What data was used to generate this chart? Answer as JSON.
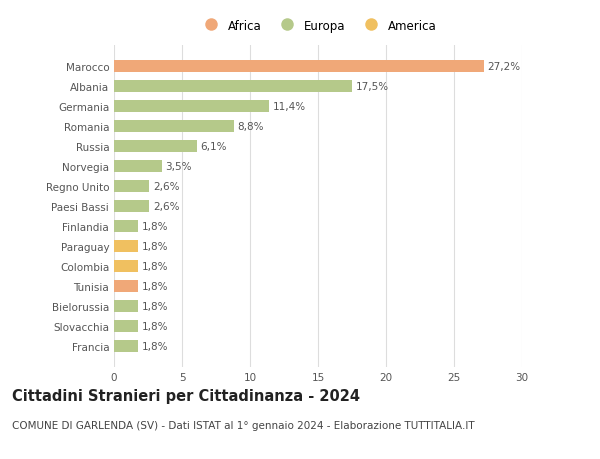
{
  "categories": [
    "Francia",
    "Slovacchia",
    "Bielorussia",
    "Tunisia",
    "Colombia",
    "Paraguay",
    "Finlandia",
    "Paesi Bassi",
    "Regno Unito",
    "Norvegia",
    "Russia",
    "Romania",
    "Germania",
    "Albania",
    "Marocco"
  ],
  "values": [
    1.8,
    1.8,
    1.8,
    1.8,
    1.8,
    1.8,
    1.8,
    2.6,
    2.6,
    3.5,
    6.1,
    8.8,
    11.4,
    17.5,
    27.2
  ],
  "labels": [
    "1,8%",
    "1,8%",
    "1,8%",
    "1,8%",
    "1,8%",
    "1,8%",
    "1,8%",
    "2,6%",
    "2,6%",
    "3,5%",
    "6,1%",
    "8,8%",
    "11,4%",
    "17,5%",
    "27,2%"
  ],
  "colors": [
    "#b5c98a",
    "#b5c98a",
    "#b5c98a",
    "#f0a878",
    "#f0c060",
    "#f0c060",
    "#b5c98a",
    "#b5c98a",
    "#b5c98a",
    "#b5c98a",
    "#b5c98a",
    "#b5c98a",
    "#b5c98a",
    "#b5c98a",
    "#f0a878"
  ],
  "legend_labels": [
    "Africa",
    "Europa",
    "America"
  ],
  "legend_colors": [
    "#f0a878",
    "#b5c98a",
    "#f0c060"
  ],
  "title": "Cittadini Stranieri per Cittadinanza - 2024",
  "subtitle": "COMUNE DI GARLENDA (SV) - Dati ISTAT al 1° gennaio 2024 - Elaborazione TUTTITALIA.IT",
  "xlim": [
    0,
    30
  ],
  "xticks": [
    0,
    5,
    10,
    15,
    20,
    25,
    30
  ],
  "bg_color": "#ffffff",
  "grid_color": "#dddddd",
  "bar_height": 0.62,
  "label_fontsize": 7.5,
  "tick_fontsize": 7.5,
  "title_fontsize": 10.5,
  "subtitle_fontsize": 7.5
}
